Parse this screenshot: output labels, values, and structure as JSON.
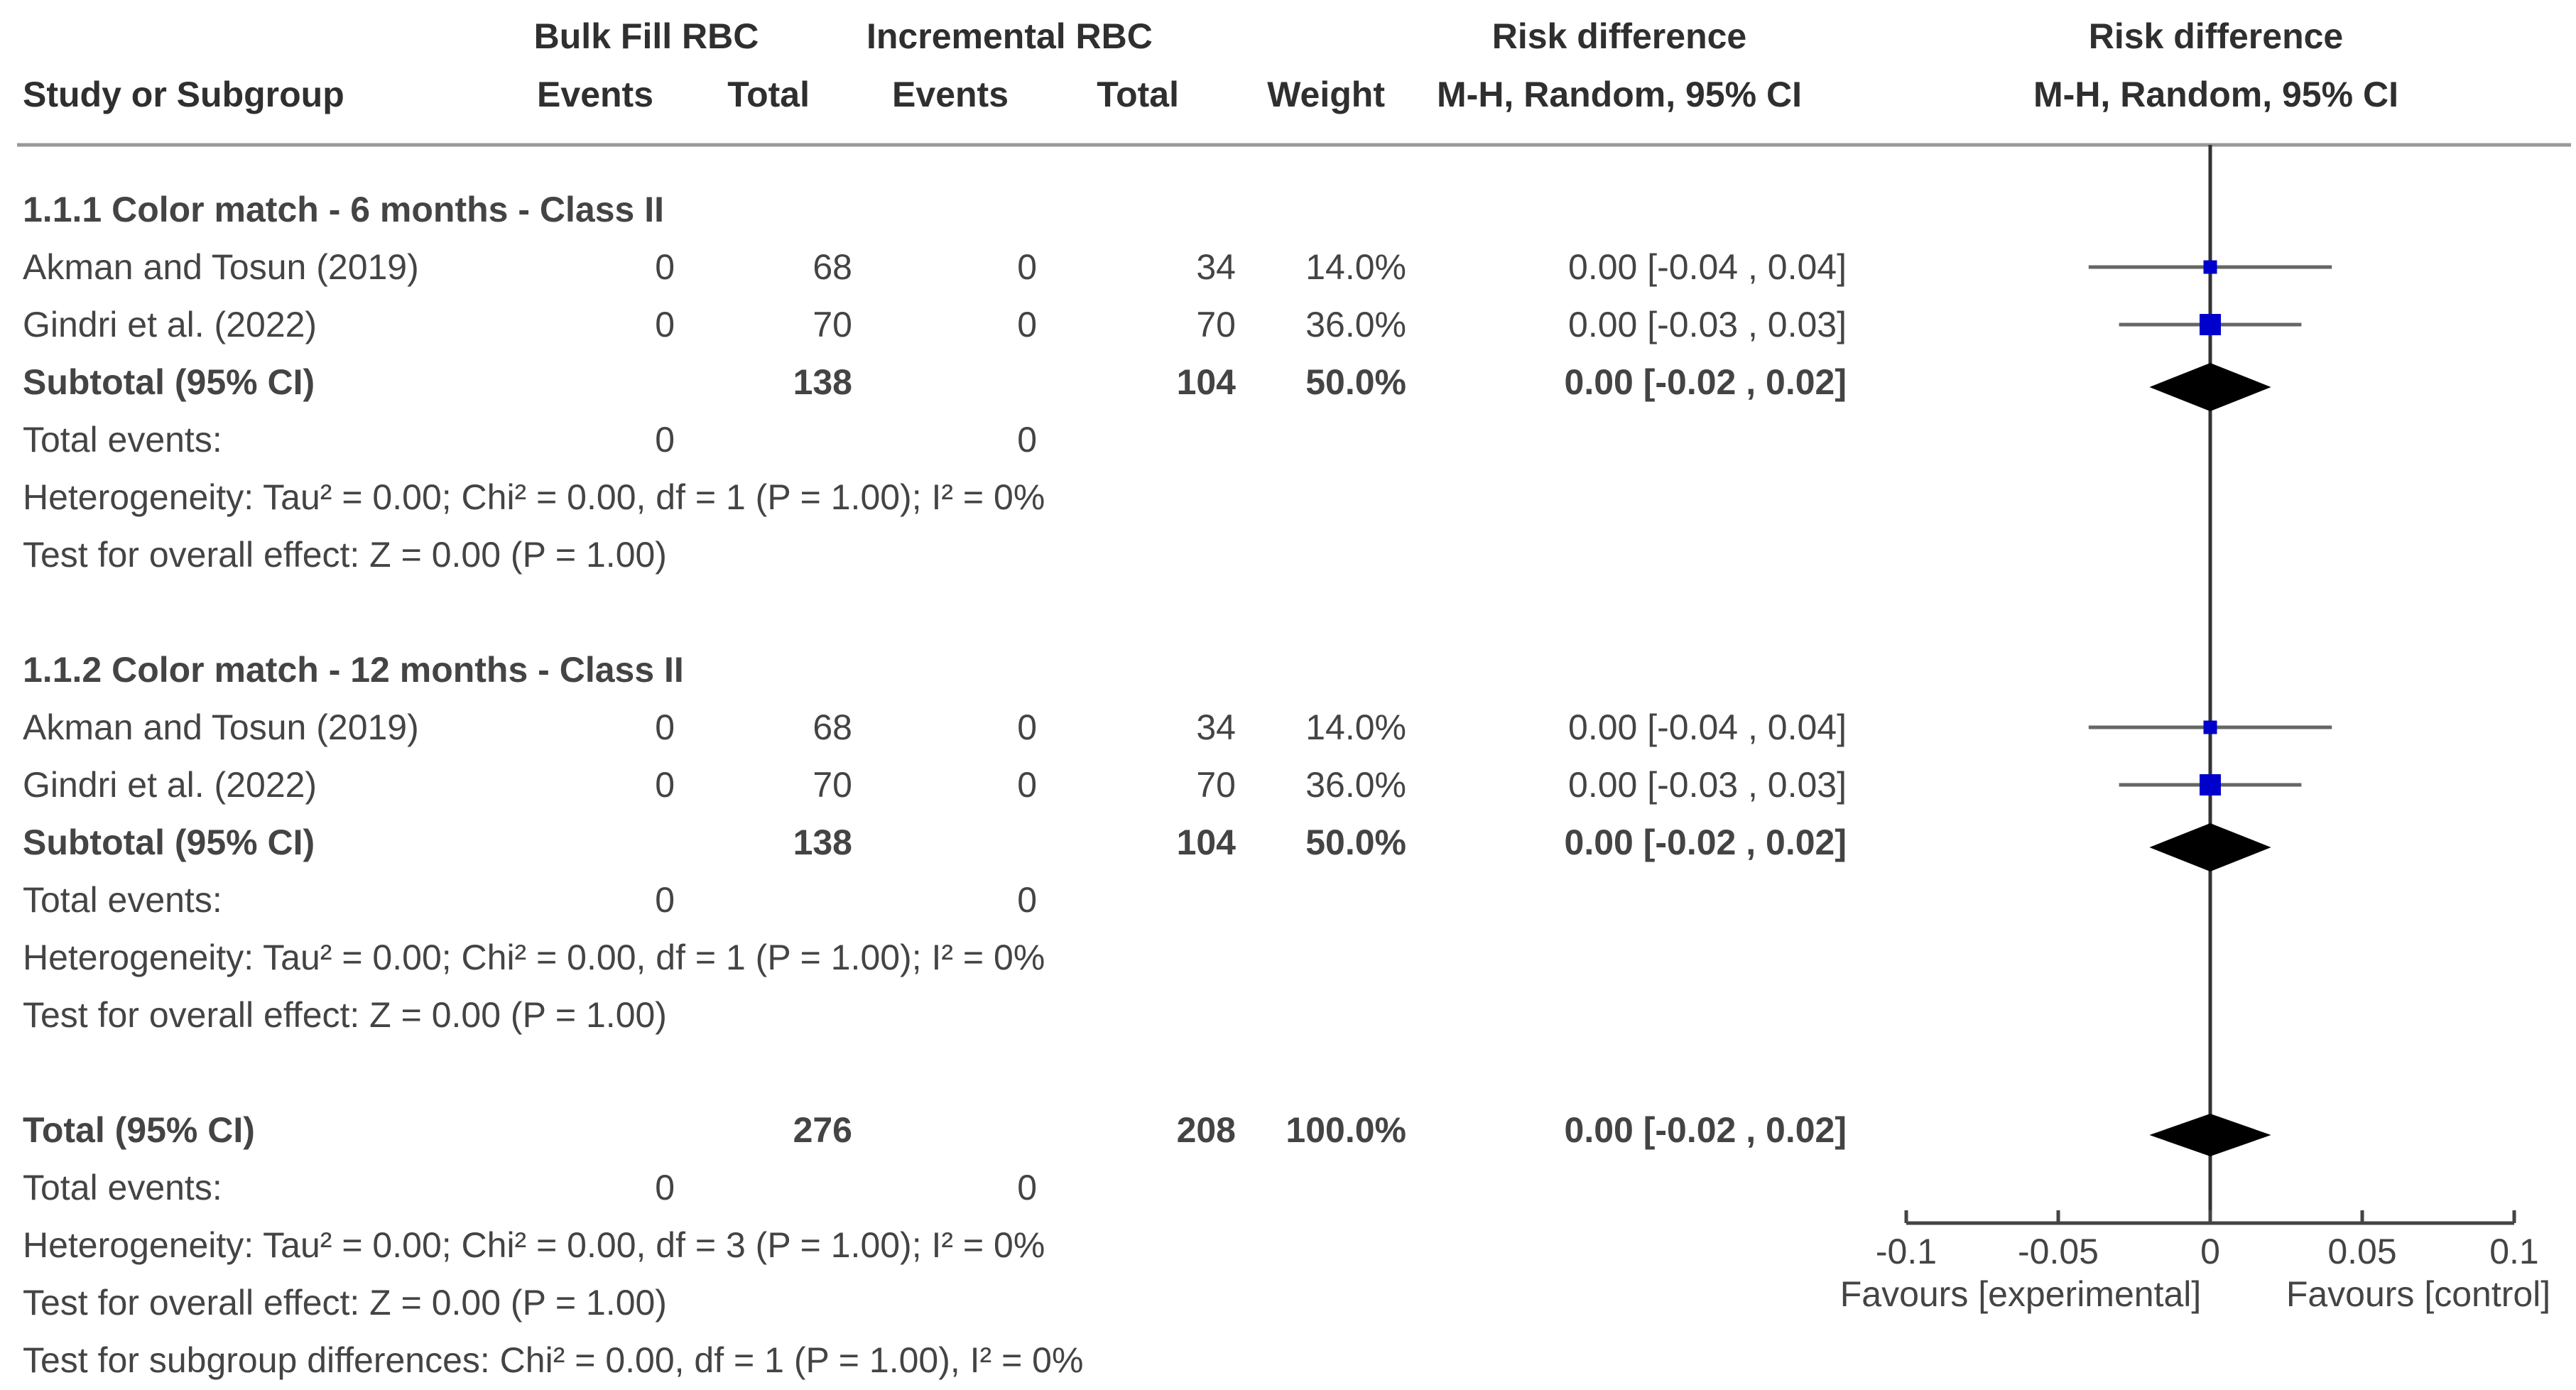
{
  "header": {
    "group1": "Bulk Fill RBC",
    "group2": "Incremental RBC",
    "rd_numeric": "Risk difference",
    "rd_plot": "Risk difference",
    "study_col": "Study or Subgroup",
    "events1": "Events",
    "total1": "Total",
    "events2": "Events",
    "total2": "Total",
    "weight": "Weight",
    "method_numeric": "M-H, Random, 95% CI",
    "method_plot": "M-H, Random, 95% CI"
  },
  "subgroups": [
    {
      "title": "1.1.1 Color match - 6 months - Class II",
      "studies": [
        {
          "name": "Akman and Tosun (2019)",
          "events1": "0",
          "total1": "68",
          "events2": "0",
          "total2": "34",
          "weight": "14.0%",
          "ci_text": "0.00 [-0.04 , 0.04]"
        },
        {
          "name": "Gindri et al. (2022)",
          "events1": "0",
          "total1": "70",
          "events2": "0",
          "total2": "70",
          "weight": "36.0%",
          "ci_text": "0.00 [-0.03 , 0.03]"
        }
      ],
      "subtotal": {
        "label": "Subtotal (95% CI)",
        "total1": "138",
        "total2": "104",
        "weight": "50.0%",
        "ci_text": "0.00 [-0.02 , 0.02]"
      },
      "total_events": {
        "label": "Total events:",
        "events1": "0",
        "events2": "0"
      },
      "heterogeneity": "Heterogeneity: Tau² = 0.00; Chi² = 0.00, df = 1 (P = 1.00); I² = 0%",
      "overall_effect": "Test for overall effect: Z = 0.00 (P = 1.00)"
    },
    {
      "title": "1.1.2 Color match - 12 months - Class II",
      "studies": [
        {
          "name": "Akman and Tosun (2019)",
          "events1": "0",
          "total1": "68",
          "events2": "0",
          "total2": "34",
          "weight": "14.0%",
          "ci_text": "0.00 [-0.04 , 0.04]"
        },
        {
          "name": "Gindri et al. (2022)",
          "events1": "0",
          "total1": "70",
          "events2": "0",
          "total2": "70",
          "weight": "36.0%",
          "ci_text": "0.00 [-0.03 , 0.03]"
        }
      ],
      "subtotal": {
        "label": "Subtotal (95% CI)",
        "total1": "138",
        "total2": "104",
        "weight": "50.0%",
        "ci_text": "0.00 [-0.02 , 0.02]"
      },
      "total_events": {
        "label": "Total events:",
        "events1": "0",
        "events2": "0"
      },
      "heterogeneity": "Heterogeneity: Tau² = 0.00; Chi² = 0.00, df = 1 (P = 1.00); I² = 0%",
      "overall_effect": "Test for overall effect: Z = 0.00 (P = 1.00)"
    }
  ],
  "total": {
    "label": "Total (95% CI)",
    "total1": "276",
    "total2": "208",
    "weight": "100.0%",
    "ci_text": "0.00 [-0.02 , 0.02]",
    "total_events": {
      "label": "Total events:",
      "events1": "0",
      "events2": "0"
    },
    "heterogeneity": "Heterogeneity: Tau² = 0.00; Chi² = 0.00, df = 3 (P = 1.00); I² = 0%",
    "overall_effect": "Test for overall effect: Z = 0.00 (P = 1.00)",
    "subgroup_diff": "Test for subgroup differences: Chi² = 0.00, df = 1 (P = 1.00), I² = 0%"
  },
  "chart_data": {
    "type": "forest",
    "xlim": [
      -0.1,
      0.1
    ],
    "ticks": [
      -0.1,
      -0.05,
      0,
      0.05,
      0.1
    ],
    "tick_labels": [
      "-0.1",
      "-0.05",
      "0",
      "0.05",
      "0.1"
    ],
    "favours_left": "Favours [experimental]",
    "favours_right": "Favours [control]",
    "marker_color": "#0000cc",
    "whisker_color": "#666666",
    "diamond_color": "#000000",
    "studies": [
      {
        "group": "1.1.1",
        "name": "Akman and Tosun (2019)",
        "estimate": 0.0,
        "lower": -0.04,
        "upper": 0.04,
        "weight": 14.0
      },
      {
        "group": "1.1.1",
        "name": "Gindri et al. (2022)",
        "estimate": 0.0,
        "lower": -0.03,
        "upper": 0.03,
        "weight": 36.0
      },
      {
        "group": "1.1.2",
        "name": "Akman and Tosun (2019)",
        "estimate": 0.0,
        "lower": -0.04,
        "upper": 0.04,
        "weight": 14.0
      },
      {
        "group": "1.1.2",
        "name": "Gindri et al. (2022)",
        "estimate": 0.0,
        "lower": -0.03,
        "upper": 0.03,
        "weight": 36.0
      }
    ],
    "pooled": [
      {
        "group": "1.1.1",
        "estimate": 0.0,
        "lower": -0.02,
        "upper": 0.02
      },
      {
        "group": "1.1.2",
        "estimate": 0.0,
        "lower": -0.02,
        "upper": 0.02
      },
      {
        "group": "total",
        "estimate": 0.0,
        "lower": -0.02,
        "upper": 0.02
      }
    ]
  }
}
